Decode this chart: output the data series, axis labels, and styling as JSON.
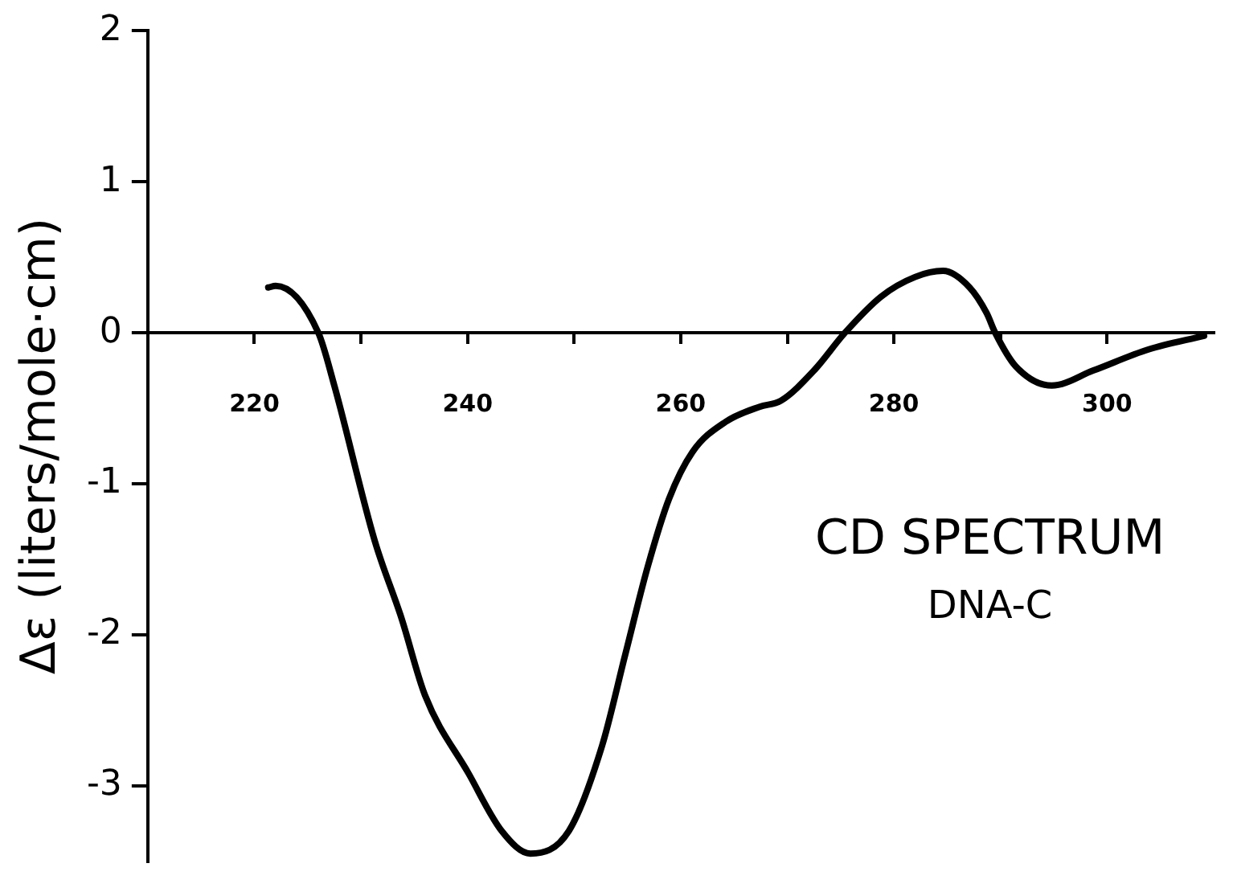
{
  "chart_data": {
    "type": "line",
    "title": "CD SPECTRUM",
    "subtitle": "DNA-C",
    "ylabel": "Δε (liters/mole·cm)",
    "x": [
      221.3,
      222.0,
      226.0,
      227.5,
      231.3,
      233.8,
      236.0,
      240.1,
      243.2,
      245.9,
      249.5,
      252.6,
      254.8,
      256.9,
      258.9,
      261.1,
      264.2,
      267.4,
      269.4,
      272.5,
      275.4,
      278.8,
      282.0,
      284.6,
      287.1,
      288.7,
      289.5,
      291.4,
      294.8,
      298.7,
      303.9,
      309.1
    ],
    "series": [
      {
        "color": "#000000",
        "values": [
          0.3,
          0.31,
          0.0,
          -0.35,
          -1.38,
          -1.89,
          -2.4,
          -2.92,
          -3.3,
          -3.45,
          -3.3,
          -2.74,
          -2.13,
          -1.55,
          -1.1,
          -0.79,
          -0.59,
          -0.49,
          -0.45,
          -0.25,
          0.0,
          0.24,
          0.37,
          0.41,
          0.3,
          0.13,
          0.0,
          -0.22,
          -0.35,
          -0.25,
          -0.11,
          -0.02
        ]
      }
    ],
    "xlim": [
      210,
      310
    ],
    "ylim": [
      -3.5,
      2
    ],
    "xticks": [
      220,
      {
        "value": 230,
        "label": null
      },
      240,
      {
        "value": 250,
        "label": null
      },
      260,
      {
        "value": 270,
        "label": null
      },
      280,
      {
        "value": 290,
        "label": null
      },
      300
    ],
    "yticks": [
      2,
      1,
      0,
      -1,
      -2,
      -3
    ],
    "grid": false,
    "legend": false,
    "marker": "none",
    "line_style": "solid"
  }
}
